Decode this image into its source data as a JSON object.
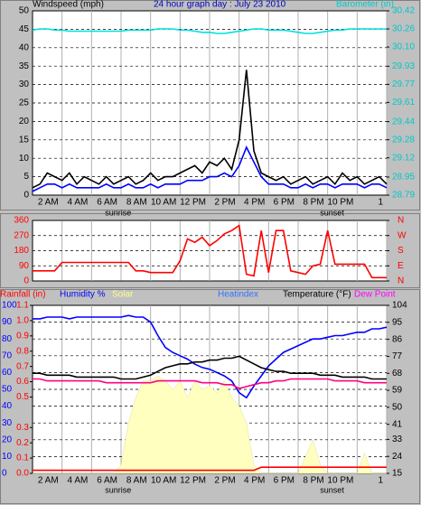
{
  "chart_data": [
    {
      "type": "line",
      "title": "24 hour graph day : July 23 2010",
      "ylabel": "Windspeed (mph)",
      "y2label": "Barometer (in)",
      "x": [
        0,
        0.5,
        1,
        1.5,
        2,
        2.5,
        3,
        3.5,
        4,
        4.5,
        5,
        5.5,
        6,
        6.5,
        7,
        7.5,
        8,
        8.5,
        9,
        9.5,
        10,
        10.5,
        11,
        11.5,
        12,
        12.5,
        13,
        13.5,
        14,
        14.5,
        15,
        15.5,
        16,
        16.5,
        17,
        17.5,
        18,
        18.5,
        19,
        19.5,
        20,
        20.5,
        21,
        21.5,
        22,
        22.5,
        23,
        23.5,
        24
      ],
      "xlim": [
        0,
        24
      ],
      "xticks": [
        {
          "value": 2,
          "label": "2 AM"
        },
        {
          "value": 4,
          "label": "4 AM"
        },
        {
          "value": 6,
          "label": "6 AM"
        },
        {
          "value": 8,
          "label": "8 AM"
        },
        {
          "value": 10,
          "label": "10 AM"
        },
        {
          "value": 12,
          "label": "12 PM"
        },
        {
          "value": 14,
          "label": "2 PM"
        },
        {
          "value": 16,
          "label": "4 PM"
        },
        {
          "value": 18,
          "label": "6 PM"
        },
        {
          "value": 20,
          "label": "8 PM"
        },
        {
          "value": 22,
          "label": "10 PM"
        },
        {
          "value": 24,
          "label": "1"
        }
      ],
      "annotations": [
        {
          "text": "sunrise",
          "x": 5.8
        },
        {
          "text": "sunset",
          "x": 20.3
        }
      ],
      "ylim": [
        0,
        50
      ],
      "yticks": [
        0,
        5,
        10,
        15,
        20,
        25,
        30,
        35,
        40,
        45,
        50
      ],
      "y2lim": [
        28.79,
        30.42
      ],
      "y2ticks": [
        30.42,
        30.26,
        {
          "value": 30.1,
          "label": "30.10"
        },
        29.93,
        29.77,
        29.61,
        29.44,
        29.28,
        29.12,
        28.95,
        28.79
      ],
      "grid": true,
      "series": [
        {
          "color": "#00e0e0",
          "axis": "y2",
          "values": [
            30.25,
            30.26,
            30.26,
            30.25,
            30.25,
            30.24,
            30.24,
            30.24,
            30.24,
            30.24,
            30.24,
            30.24,
            30.24,
            30.25,
            30.25,
            30.25,
            30.25,
            30.26,
            30.26,
            30.26,
            30.25,
            30.25,
            30.24,
            30.23,
            30.23,
            30.22,
            30.22,
            30.23,
            30.24,
            30.25,
            30.26,
            30.26,
            30.25,
            30.25,
            30.25,
            30.24,
            30.23,
            30.22,
            30.22,
            30.23,
            30.24,
            30.25,
            30.25,
            30.26,
            30.26,
            30.26,
            30.26,
            30.26,
            30.26
          ]
        },
        {
          "color": "#000000",
          "axis": "y",
          "values": [
            2,
            3,
            6,
            5,
            4,
            6,
            3,
            5,
            4,
            3,
            5,
            3,
            4,
            5,
            3,
            4,
            6,
            4,
            5,
            5,
            6,
            7,
            8,
            6,
            9,
            8,
            10,
            7,
            15,
            34,
            12,
            6,
            5,
            4,
            5,
            3,
            4,
            5,
            3,
            4,
            5,
            3,
            6,
            4,
            5,
            3,
            4,
            5,
            3
          ]
        },
        {
          "color": "#0000ff",
          "axis": "y",
          "values": [
            1,
            2,
            3,
            3,
            2,
            3,
            2,
            2,
            2,
            2,
            3,
            2,
            2,
            3,
            2,
            2,
            3,
            2,
            3,
            3,
            3,
            4,
            4,
            4,
            5,
            5,
            6,
            5,
            8,
            13,
            9,
            5,
            3,
            3,
            3,
            2,
            2,
            3,
            2,
            3,
            3,
            2,
            3,
            3,
            3,
            2,
            3,
            3,
            2
          ]
        }
      ]
    },
    {
      "type": "line",
      "x": [
        0,
        0.5,
        1,
        1.5,
        2,
        2.5,
        3,
        3.5,
        4,
        4.5,
        5,
        5.5,
        6,
        6.5,
        7,
        7.5,
        8,
        8.5,
        9,
        9.5,
        10,
        10.5,
        11,
        11.5,
        12,
        12.5,
        13,
        13.5,
        14,
        14.5,
        15,
        15.5,
        16,
        16.5,
        17,
        17.5,
        18,
        18.5,
        19,
        19.5,
        20,
        20.5,
        21,
        21.5,
        22,
        22.5,
        23,
        23.5,
        24
      ],
      "xlim": [
        0,
        24
      ],
      "xticks": [
        2,
        4,
        6,
        8,
        10,
        12,
        14,
        16,
        18,
        20,
        22,
        24
      ],
      "ylim": [
        0,
        360
      ],
      "yticks": [
        0,
        90,
        180,
        270,
        360
      ],
      "y2lim": [
        0,
        360
      ],
      "y2ticks": [
        {
          "value": 360,
          "label": "N"
        },
        {
          "value": 270,
          "label": "W"
        },
        {
          "value": 180,
          "label": "S"
        },
        {
          "value": 90,
          "label": "E"
        },
        {
          "value": 0,
          "label": "N"
        }
      ],
      "grid": true,
      "series": [
        {
          "color": "#ff0000",
          "axis": "y",
          "values": [
            60,
            60,
            60,
            60,
            110,
            110,
            110,
            110,
            110,
            110,
            110,
            110,
            110,
            110,
            60,
            60,
            50,
            50,
            50,
            50,
            120,
            250,
            230,
            260,
            210,
            240,
            280,
            300,
            330,
            40,
            30,
            300,
            50,
            300,
            300,
            60,
            50,
            40,
            90,
            100,
            300,
            100,
            100,
            100,
            100,
            100,
            20,
            20,
            20
          ]
        }
      ]
    },
    {
      "type": "line",
      "heatindex_label": "Heatindex",
      "x": [
        0,
        0.5,
        1,
        1.5,
        2,
        2.5,
        3,
        3.5,
        4,
        4.5,
        5,
        5.5,
        6,
        6.5,
        7,
        7.5,
        8,
        8.5,
        9,
        9.5,
        10,
        10.5,
        11,
        11.5,
        12,
        12.5,
        13,
        13.5,
        14,
        14.5,
        15,
        15.5,
        16,
        16.5,
        17,
        17.5,
        18,
        18.5,
        19,
        19.5,
        20,
        20.5,
        21,
        21.5,
        22,
        22.5,
        23,
        23.5,
        24
      ],
      "xlim": [
        0,
        24
      ],
      "xticks": [
        {
          "value": 2,
          "label": "2 AM"
        },
        {
          "value": 4,
          "label": "4 AM"
        },
        {
          "value": 6,
          "label": "6 AM"
        },
        {
          "value": 8,
          "label": "8 AM"
        },
        {
          "value": 10,
          "label": "10 AM"
        },
        {
          "value": 12,
          "label": "12 PM"
        },
        {
          "value": 14,
          "label": "2 PM"
        },
        {
          "value": 16,
          "label": "4 PM"
        },
        {
          "value": 18,
          "label": "6 PM"
        },
        {
          "value": 20,
          "label": "8 PM"
        },
        {
          "value": 22,
          "label": "10 PM"
        },
        {
          "value": 24,
          "label": "1"
        }
      ],
      "annotations": [
        {
          "text": "sunrise",
          "x": 5.8
        },
        {
          "text": "sunset",
          "x": 20.3
        }
      ],
      "ylim": [
        0,
        100
      ],
      "yticks": [
        0,
        10,
        20,
        30,
        40,
        50,
        60,
        70,
        80,
        90,
        100
      ],
      "y2lim": [
        15,
        104
      ],
      "y2ticks": [
        104,
        95,
        86,
        77,
        68,
        59,
        50,
        41,
        33,
        24,
        15
      ],
      "y3lim": [
        0,
        1.1
      ],
      "y3ticks": [
        {
          "value": 0,
          "label": "0.0"
        },
        0.1,
        0.2,
        0.3,
        0.5,
        0.6,
        0.7,
        0.8,
        0.9,
        {
          "value": 1,
          "label": "1.0"
        },
        1.1
      ],
      "grid": true,
      "series": [
        {
          "name": "Solar",
          "color": "#ffffc0",
          "axis": "y",
          "fill": true,
          "values": [
            0,
            0,
            0,
            0,
            0,
            0,
            0,
            0,
            0,
            0,
            0,
            0,
            5,
            30,
            45,
            55,
            55,
            58,
            55,
            50,
            55,
            45,
            55,
            50,
            52,
            48,
            55,
            45,
            40,
            30,
            5,
            0,
            0,
            0,
            0,
            0,
            0,
            10,
            20,
            5,
            0,
            0,
            0,
            0,
            0,
            12,
            0,
            0,
            0
          ]
        },
        {
          "name": "Rainfall (in)",
          "color": "#ff0000",
          "axis": "y3",
          "values": [
            0.02,
            0.02,
            0.02,
            0.02,
            0.02,
            0.02,
            0.02,
            0.02,
            0.02,
            0.02,
            0.02,
            0.02,
            0.02,
            0.02,
            0.02,
            0.02,
            0.02,
            0.02,
            0.02,
            0.02,
            0.02,
            0.02,
            0.02,
            0.02,
            0.02,
            0.02,
            0.02,
            0.02,
            0.02,
            0.02,
            0.02,
            0.04,
            0.04,
            0.04,
            0.04,
            0.04,
            0.04,
            0.04,
            0.04,
            0.04,
            0.04,
            0.04,
            0.04,
            0.04,
            0.04,
            0.04,
            0.04,
            0.04,
            0.04
          ]
        },
        {
          "name": "Humidity %",
          "color": "#0000ff",
          "axis": "y",
          "values": [
            92,
            92,
            93,
            93,
            93,
            92,
            93,
            93,
            93,
            93,
            93,
            93,
            93,
            94,
            93,
            93,
            90,
            82,
            75,
            72,
            70,
            68,
            65,
            63,
            62,
            60,
            58,
            55,
            48,
            45,
            52,
            58,
            64,
            68,
            72,
            74,
            76,
            78,
            80,
            80,
            81,
            82,
            82,
            83,
            84,
            84,
            86,
            86,
            87
          ]
        },
        {
          "name": "Temperature (°F)",
          "color": "#000000",
          "axis": "y2",
          "values": [
            68,
            68,
            67,
            67,
            67,
            67,
            66,
            66,
            66,
            66,
            66,
            66,
            65,
            65,
            65,
            66,
            67,
            69,
            71,
            72,
            73,
            73,
            74,
            74,
            75,
            75,
            76,
            76,
            77,
            75,
            73,
            71,
            70,
            69,
            69,
            68,
            68,
            68,
            68,
            67,
            67,
            67,
            66,
            66,
            66,
            66,
            65,
            65,
            65
          ]
        },
        {
          "name": "Dew Point",
          "color": "#ff0080",
          "axis": "y2",
          "values": [
            65,
            65,
            64,
            64,
            64,
            64,
            64,
            64,
            64,
            64,
            63,
            63,
            63,
            63,
            63,
            63,
            63,
            64,
            64,
            64,
            64,
            64,
            64,
            63,
            63,
            63,
            62,
            62,
            60,
            61,
            62,
            63,
            63,
            64,
            64,
            65,
            65,
            65,
            65,
            65,
            65,
            64,
            64,
            64,
            64,
            63,
            63,
            63,
            63
          ]
        }
      ]
    }
  ]
}
